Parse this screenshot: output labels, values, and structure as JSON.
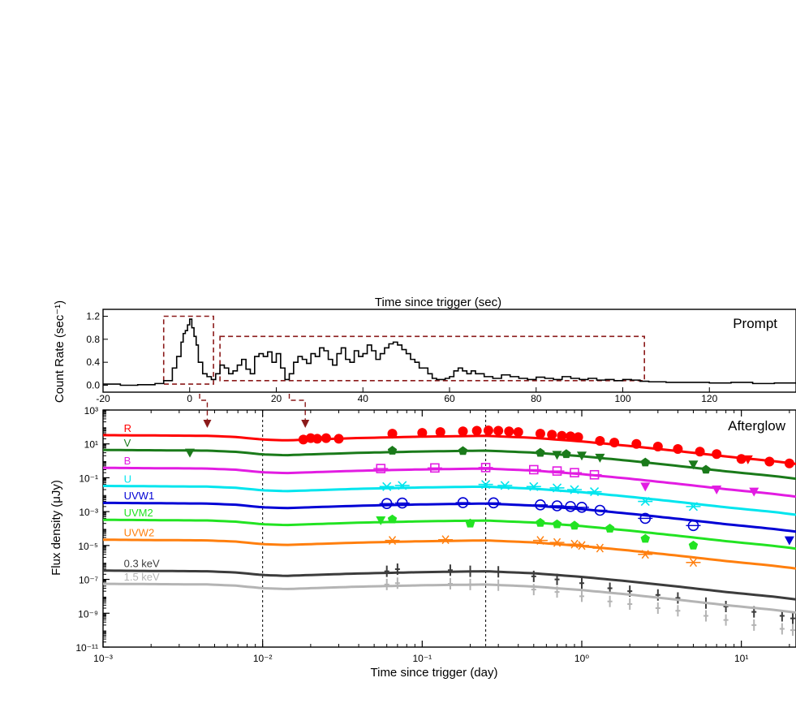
{
  "chart_data": [
    {
      "type": "line",
      "panel_label": "Prompt",
      "xlabel": "Time since trigger (sec)",
      "ylabel": "Count Rate (sec⁻¹)",
      "xlim": [
        -20,
        140
      ],
      "ylim": [
        -0.12,
        1.32
      ],
      "x_ticks": [
        -20,
        0,
        20,
        40,
        60,
        80,
        100,
        120
      ],
      "y_ticks": [
        0.0,
        0.4,
        0.8,
        1.2
      ],
      "y_tick_labels": [
        "0.0",
        "0.4",
        "0.8",
        "1.2"
      ],
      "series": [
        {
          "color": "#000000",
          "x": [
            -20,
            -16,
            -12,
            -8,
            -6,
            -4,
            -3,
            -2,
            -1.5,
            -1,
            -0.5,
            0,
            0.5,
            1,
            1.5,
            2,
            3,
            4,
            5,
            6,
            7,
            8,
            9,
            10,
            11,
            12,
            13,
            14,
            15,
            16,
            17,
            18,
            19,
            20,
            21,
            22,
            23,
            24,
            25,
            26,
            27,
            28,
            29,
            30,
            31,
            32,
            33,
            34,
            35,
            36,
            37,
            38,
            39,
            40,
            41,
            42,
            43,
            44,
            45,
            46,
            47,
            48,
            49,
            50,
            51,
            52,
            53,
            54,
            55,
            56,
            57,
            58,
            59,
            60,
            61,
            62,
            63,
            64,
            65,
            66,
            68,
            70,
            72,
            74,
            76,
            78,
            80,
            82,
            84,
            86,
            88,
            90,
            92,
            94,
            96,
            98,
            100,
            102,
            104,
            106,
            110,
            115,
            120,
            125,
            130,
            135,
            140
          ],
          "y": [
            0.02,
            0.0,
            0.01,
            0.03,
            0.08,
            0.3,
            0.5,
            0.75,
            0.9,
            0.95,
            1.05,
            1.15,
            1.0,
            0.85,
            0.7,
            0.4,
            0.2,
            0.15,
            0.1,
            0.2,
            0.35,
            0.3,
            0.2,
            0.25,
            0.35,
            0.45,
            0.28,
            0.2,
            0.5,
            0.55,
            0.5,
            0.58,
            0.4,
            0.55,
            0.3,
            0.1,
            0.2,
            0.4,
            0.5,
            0.45,
            0.38,
            0.55,
            0.5,
            0.65,
            0.6,
            0.45,
            0.35,
            0.55,
            0.65,
            0.45,
            0.4,
            0.6,
            0.5,
            0.55,
            0.7,
            0.6,
            0.45,
            0.55,
            0.65,
            0.72,
            0.75,
            0.7,
            0.62,
            0.55,
            0.45,
            0.4,
            0.3,
            0.3,
            0.2,
            0.12,
            0.1,
            0.1,
            0.12,
            0.15,
            0.25,
            0.3,
            0.25,
            0.2,
            0.25,
            0.2,
            0.15,
            0.12,
            0.18,
            0.15,
            0.12,
            0.1,
            0.14,
            0.12,
            0.1,
            0.15,
            0.12,
            0.1,
            0.12,
            0.09,
            0.1,
            0.08,
            0.1,
            0.09,
            0.07,
            0.06,
            0.05,
            0.05,
            0.04,
            0.05,
            0.03,
            0.04,
            0.03
          ]
        }
      ],
      "annotations": [
        {
          "kind": "dashed-box",
          "x_range": [
            -6,
            5.5
          ],
          "y_range": [
            0.02,
            1.2
          ],
          "color": "#8b1a1a"
        },
        {
          "kind": "dashed-box",
          "x_range": [
            7,
            105
          ],
          "y_range": [
            0.08,
            0.85
          ],
          "color": "#8b1a1a"
        }
      ]
    },
    {
      "type": "line",
      "scale": "log-log",
      "panel_label": "Afterglow",
      "xlabel": "Time since trigger (day)",
      "ylabel": "Flux density (μJy)",
      "xlim": [
        0.001,
        22
      ],
      "ylim": [
        1e-11,
        1000
      ],
      "x_ticks": [
        0.001,
        0.01,
        0.1,
        1,
        10
      ],
      "x_tick_labels": [
        "10⁻³",
        "10⁻²",
        "10⁻¹",
        "10⁰",
        "10¹"
      ],
      "y_ticks": [
        1e-11,
        1e-09,
        1e-07,
        1e-05,
        0.001,
        0.1,
        10,
        1000
      ],
      "y_tick_labels": [
        "10⁻¹¹",
        "10⁻⁹",
        "10⁻⁷",
        "10⁻⁵",
        "10⁻³",
        "10⁻¹",
        "10¹",
        "10³"
      ],
      "vertical_lines": [
        0.01,
        0.25
      ],
      "model_shape": {
        "t": [
          0.001,
          0.0045,
          0.0068,
          0.01,
          0.014,
          0.02,
          0.04,
          0.1,
          0.25,
          0.5,
          1,
          2,
          4,
          8,
          16,
          22
        ],
        "dlog": [
          0.04,
          0.0,
          -0.07,
          -0.22,
          -0.27,
          -0.22,
          -0.13,
          -0.05,
          0.0,
          -0.12,
          -0.33,
          -0.6,
          -0.9,
          -1.22,
          -1.5,
          -1.66
        ]
      },
      "series": [
        {
          "name": "R",
          "color": "#ff0000",
          "marker": "circle",
          "norm": 30,
          "points": [
            [
              0.018,
              18
            ],
            [
              0.02,
              22
            ],
            [
              0.022,
              20
            ],
            [
              0.025,
              22
            ],
            [
              0.03,
              20
            ],
            [
              0.065,
              40
            ],
            [
              0.1,
              45
            ],
            [
              0.13,
              50
            ],
            [
              0.18,
              55
            ],
            [
              0.22,
              60
            ],
            [
              0.26,
              62
            ],
            [
              0.3,
              60
            ],
            [
              0.35,
              55
            ],
            [
              0.4,
              50
            ],
            [
              0.55,
              40
            ],
            [
              0.65,
              35
            ],
            [
              0.75,
              30
            ],
            [
              0.85,
              28
            ],
            [
              0.95,
              25
            ],
            [
              1.3,
              15
            ],
            [
              1.6,
              12
            ],
            [
              2.2,
              10
            ],
            [
              3,
              7
            ],
            [
              4,
              5
            ],
            [
              5.5,
              3.5
            ],
            [
              7,
              2.5
            ],
            [
              10,
              1.3
            ],
            [
              15,
              0.9
            ],
            [
              20,
              0.7
            ]
          ],
          "upper_limits": [
            [
              11,
              1.2
            ]
          ]
        },
        {
          "name": "V",
          "color": "#1a7a1a",
          "marker": "pentagon",
          "norm": 4,
          "points": [
            [
              0.065,
              4
            ],
            [
              0.18,
              3.8
            ],
            [
              0.55,
              3
            ],
            [
              0.8,
              2.5
            ],
            [
              2.5,
              0.8
            ],
            [
              6,
              0.3
            ]
          ],
          "upper_limits": [
            [
              0.0035,
              3
            ],
            [
              0.7,
              2.2
            ],
            [
              1.0,
              2.0
            ],
            [
              1.3,
              1.5
            ],
            [
              5,
              0.6
            ]
          ]
        },
        {
          "name": "B",
          "color": "#e21ce2",
          "marker": "square",
          "norm": 0.35,
          "points": [
            [
              0.055,
              0.35
            ],
            [
              0.12,
              0.38
            ],
            [
              0.25,
              0.4
            ],
            [
              0.5,
              0.3
            ],
            [
              0.7,
              0.25
            ],
            [
              0.9,
              0.2
            ],
            [
              1.2,
              0.15
            ]
          ],
          "upper_limits": [
            [
              2.5,
              0.03
            ],
            [
              7,
              0.02
            ],
            [
              12,
              0.015
            ]
          ]
        },
        {
          "name": "U",
          "color": "#00e5ee",
          "marker": "cross",
          "norm": 0.03,
          "points": [
            [
              0.06,
              0.03
            ],
            [
              0.075,
              0.035
            ],
            [
              0.25,
              0.04
            ],
            [
              0.33,
              0.035
            ],
            [
              0.5,
              0.03
            ],
            [
              0.7,
              0.025
            ],
            [
              0.9,
              0.02
            ],
            [
              1.2,
              0.015
            ],
            [
              2.5,
              0.004
            ],
            [
              5,
              0.002
            ]
          ]
        },
        {
          "name": "UVW1",
          "color": "#0000d5",
          "marker": "circle-open",
          "norm": 0.003,
          "points": [
            [
              0.06,
              0.003
            ],
            [
              0.075,
              0.0032
            ],
            [
              0.18,
              0.0034
            ],
            [
              0.28,
              0.0033
            ],
            [
              0.55,
              0.0025
            ],
            [
              0.7,
              0.0022
            ],
            [
              0.85,
              0.002
            ],
            [
              1.0,
              0.0018
            ],
            [
              1.3,
              0.0012
            ],
            [
              2.5,
              0.0004
            ],
            [
              5,
              0.00015
            ]
          ],
          "upper_limits": [
            [
              20,
              2e-05
            ]
          ]
        },
        {
          "name": "UVM2",
          "color": "#22e322",
          "marker": "pentagon",
          "norm": 0.0003,
          "points": [
            [
              0.065,
              0.00035
            ],
            [
              0.2,
              0.0002
            ],
            [
              0.55,
              0.00022
            ],
            [
              0.7,
              0.00018
            ],
            [
              0.9,
              0.00015
            ],
            [
              1.5,
              0.0001
            ],
            [
              2.5,
              2.5e-05
            ],
            [
              5,
              1e-05
            ]
          ],
          "upper_limits": [
            [
              0.055,
              0.0003
            ]
          ]
        },
        {
          "name": "UVW2",
          "color": "#ff7f0e",
          "marker": "star",
          "norm": 2e-05,
          "points": [
            [
              0.065,
              2e-05
            ],
            [
              0.14,
              2.2e-05
            ],
            [
              0.55,
              2e-05
            ],
            [
              0.7,
              1.5e-05
            ],
            [
              0.9,
              1.2e-05
            ],
            [
              1.0,
              1e-05
            ],
            [
              1.3,
              7e-06
            ],
            [
              2.5,
              3e-06
            ],
            [
              5,
              1e-06
            ]
          ]
        },
        {
          "name": "0.3 keV",
          "color": "#3c3c3c",
          "marker": "bar",
          "norm": 3e-07,
          "points": [
            [
              0.06,
              3e-07
            ],
            [
              0.07,
              4e-07
            ],
            [
              0.15,
              3.5e-07
            ],
            [
              0.2,
              3e-07
            ],
            [
              0.3,
              2.8e-07
            ],
            [
              0.5,
              1.5e-07
            ],
            [
              0.7,
              1e-07
            ],
            [
              1.0,
              6e-08
            ],
            [
              1.5,
              3e-08
            ],
            [
              2,
              2e-08
            ],
            [
              3,
              1.2e-08
            ],
            [
              4,
              8e-09
            ],
            [
              6,
              4e-09
            ],
            [
              8,
              2.5e-09
            ],
            [
              12,
              1.2e-09
            ],
            [
              18,
              7e-10
            ],
            [
              21,
              5e-10
            ]
          ]
        },
        {
          "name": "1.5 keV",
          "color": "#b4b4b4",
          "marker": "bar",
          "norm": 5e-08,
          "points": [
            [
              0.06,
              5e-08
            ],
            [
              0.07,
              6e-08
            ],
            [
              0.15,
              5.5e-08
            ],
            [
              0.2,
              5e-08
            ],
            [
              0.3,
              4.5e-08
            ],
            [
              0.5,
              2.5e-08
            ],
            [
              0.7,
              1.8e-08
            ],
            [
              1.0,
              1e-08
            ],
            [
              1.5,
              5e-09
            ],
            [
              2,
              3.5e-09
            ],
            [
              3,
              2e-09
            ],
            [
              4,
              1.4e-09
            ],
            [
              6,
              7e-10
            ],
            [
              8,
              4e-10
            ],
            [
              12,
              2e-10
            ],
            [
              18,
              1.2e-10
            ],
            [
              21,
              1e-10
            ]
          ]
        }
      ]
    }
  ]
}
